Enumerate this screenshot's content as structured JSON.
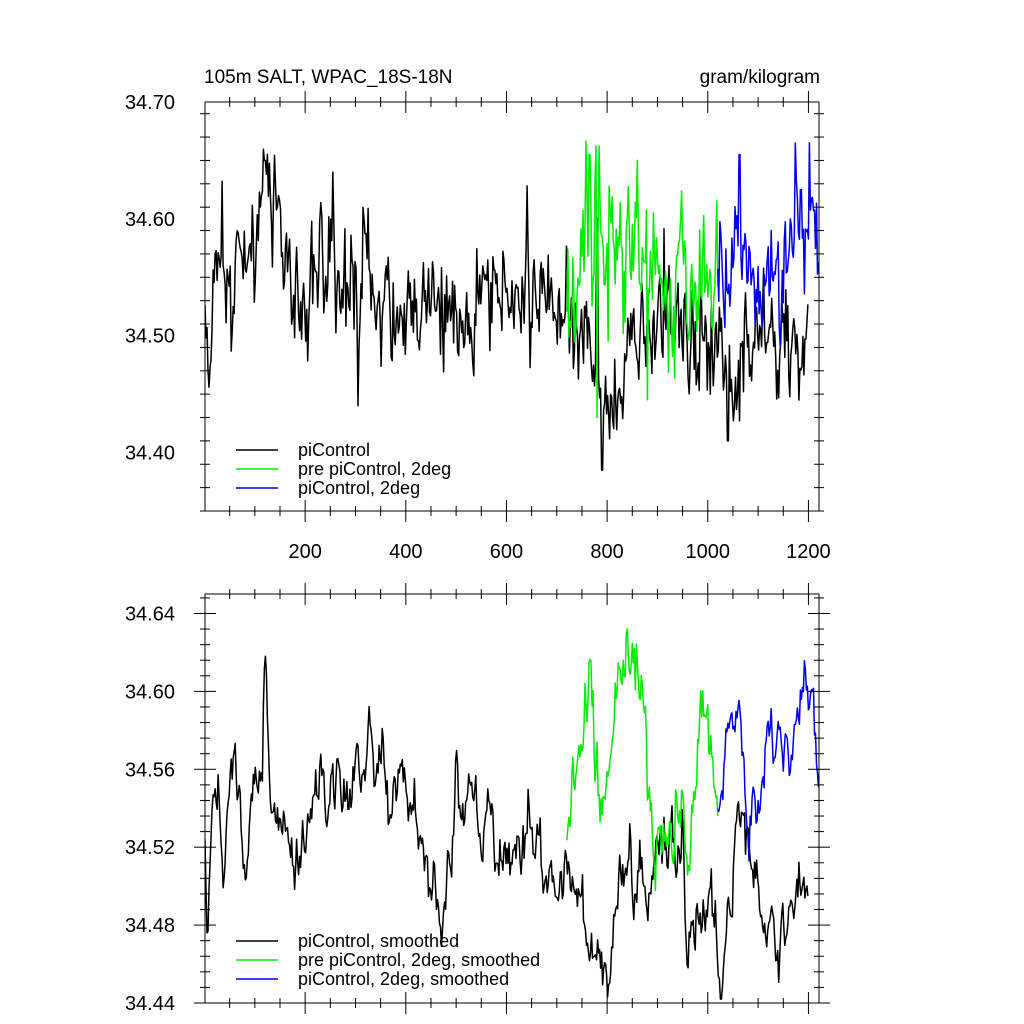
{
  "figure": {
    "title_left": "105m SALT, WPAC_18S-18N",
    "title_right": "gram/kilogram"
  },
  "chart_data": [
    {
      "type": "line",
      "title": "105m SALT, WPAC_18S-18N",
      "units": "gram/kilogram",
      "xlim": [
        1,
        1221
      ],
      "ylim": [
        34.35,
        34.7
      ],
      "xticks": [
        200,
        400,
        600,
        800,
        1000,
        1200
      ],
      "yticks": [
        34.4,
        34.5,
        34.6,
        34.7
      ],
      "ytick_labels": [
        "34.40",
        "34.50",
        "34.60",
        "34.70"
      ],
      "legend_position": "bottom-left",
      "series": [
        {
          "name": "piControl",
          "color": "#000000",
          "x_start": 1,
          "x_end": 1200,
          "mean": 34.535,
          "noise": 0.038,
          "anchors": [
            [
              1,
              34.54
            ],
            [
              10,
              34.45
            ],
            [
              20,
              34.56
            ],
            [
              60,
              34.55
            ],
            [
              115,
              34.6
            ],
            [
              120,
              34.65
            ],
            [
              170,
              34.55
            ],
            [
              200,
              34.52
            ],
            [
              240,
              34.56
            ],
            [
              300,
              34.54
            ],
            [
              400,
              34.54
            ],
            [
              500,
              34.52
            ],
            [
              600,
              34.53
            ],
            [
              700,
              34.53
            ],
            [
              750,
              34.51
            ],
            [
              795,
              34.42
            ],
            [
              850,
              34.49
            ],
            [
              900,
              34.52
            ],
            [
              1000,
              34.49
            ],
            [
              1040,
              34.47
            ],
            [
              1100,
              34.5
            ],
            [
              1150,
              34.49
            ],
            [
              1200,
              34.49
            ]
          ],
          "peaks": [
            [
              120,
              34.65
            ],
            [
              255,
              34.64
            ],
            [
              780,
              34.6
            ],
            [
              790,
              34.385
            ],
            [
              1040,
              34.41
            ],
            [
              305,
              34.44
            ]
          ]
        },
        {
          "name": "pre piControl, 2deg",
          "color": "#00ee00",
          "x_start": 720,
          "x_end": 1020,
          "mean": 34.555,
          "noise": 0.05,
          "anchors": [
            [
              720,
              34.51
            ],
            [
              760,
              34.58
            ],
            [
              800,
              34.56
            ],
            [
              850,
              34.58
            ],
            [
              900,
              34.55
            ],
            [
              950,
              34.54
            ],
            [
              1000,
              34.55
            ],
            [
              1020,
              34.54
            ]
          ],
          "peaks": [
            [
              765,
              34.655
            ],
            [
              860,
              34.65
            ],
            [
              780,
              34.43
            ],
            [
              880,
              34.445
            ]
          ]
        },
        {
          "name": "piControl, 2deg",
          "color": "#0000ee",
          "x_start": 1020,
          "x_end": 1220,
          "mean": 34.56,
          "noise": 0.042,
          "anchors": [
            [
              1020,
              34.54
            ],
            [
              1060,
              34.56
            ],
            [
              1100,
              34.56
            ],
            [
              1150,
              34.56
            ],
            [
              1190,
              34.6
            ],
            [
              1210,
              34.61
            ],
            [
              1220,
              34.56
            ]
          ],
          "peaks": [
            [
              1063,
              34.655
            ],
            [
              1202,
              34.665
            ],
            [
              1185,
              34.625
            ]
          ]
        }
      ]
    },
    {
      "type": "line",
      "title": "",
      "xlim": [
        1,
        1221
      ],
      "ylim": [
        34.44,
        34.65
      ],
      "xticks": [
        200,
        400,
        600,
        800,
        1000,
        1200
      ],
      "yticks": [
        34.44,
        34.48,
        34.52,
        34.56,
        34.6,
        34.64
      ],
      "ytick_labels": [
        "34.44",
        "34.48",
        "34.52",
        "34.56",
        "34.60",
        "34.64"
      ],
      "legend_position": "bottom-left",
      "series": [
        {
          "name": "piControl, smoothed",
          "color": "#000000",
          "x_start": 1,
          "x_end": 1200,
          "mean": 34.535,
          "noise": 0.02,
          "anchors": [
            [
              1,
              34.51
            ],
            [
              6,
              34.478
            ],
            [
              15,
              34.56
            ],
            [
              40,
              34.52
            ],
            [
              60,
              34.575
            ],
            [
              80,
              34.5
            ],
            [
              100,
              34.56
            ],
            [
              115,
              34.575
            ],
            [
              120,
              34.624
            ],
            [
              130,
              34.55
            ],
            [
              160,
              34.54
            ],
            [
              190,
              34.51
            ],
            [
              240,
              34.55
            ],
            [
              300,
              34.56
            ],
            [
              400,
              34.56
            ],
            [
              470,
              34.48
            ],
            [
              500,
              34.54
            ],
            [
              550,
              34.53
            ],
            [
              600,
              34.52
            ],
            [
              650,
              34.53
            ],
            [
              700,
              34.49
            ],
            [
              750,
              34.49
            ],
            [
              780,
              34.46
            ],
            [
              805,
              34.453
            ],
            [
              830,
              34.52
            ],
            [
              860,
              34.49
            ],
            [
              900,
              34.51
            ],
            [
              950,
              34.53
            ],
            [
              960,
              34.465
            ],
            [
              1000,
              34.5
            ],
            [
              1030,
              34.457
            ],
            [
              1060,
              34.53
            ],
            [
              1100,
              34.51
            ],
            [
              1140,
              34.47
            ],
            [
              1200,
              34.5
            ]
          ],
          "peaks": []
        },
        {
          "name": "pre piControl, 2deg, smoothed",
          "color": "#00ee00",
          "x_start": 720,
          "x_end": 1020,
          "mean": 34.555,
          "noise": 0.025,
          "anchors": [
            [
              720,
              34.51
            ],
            [
              745,
              34.59
            ],
            [
              765,
              34.607
            ],
            [
              790,
              34.53
            ],
            [
              830,
              34.61
            ],
            [
              860,
              34.616
            ],
            [
              880,
              34.53
            ],
            [
              920,
              34.55
            ],
            [
              960,
              34.52
            ],
            [
              1000,
              34.6
            ],
            [
              1020,
              34.52
            ]
          ],
          "peaks": []
        },
        {
          "name": "piControl, 2deg, smoothed",
          "color": "#0000ee",
          "x_start": 1020,
          "x_end": 1220,
          "mean": 34.56,
          "noise": 0.018,
          "anchors": [
            [
              1020,
              34.545
            ],
            [
              1040,
              34.58
            ],
            [
              1060,
              34.59
            ],
            [
              1080,
              34.53
            ],
            [
              1110,
              34.57
            ],
            [
              1150,
              34.57
            ],
            [
              1180,
              34.58
            ],
            [
              1195,
              34.61
            ],
            [
              1205,
              34.616
            ],
            [
              1220,
              34.56
            ]
          ],
          "peaks": []
        }
      ]
    }
  ]
}
